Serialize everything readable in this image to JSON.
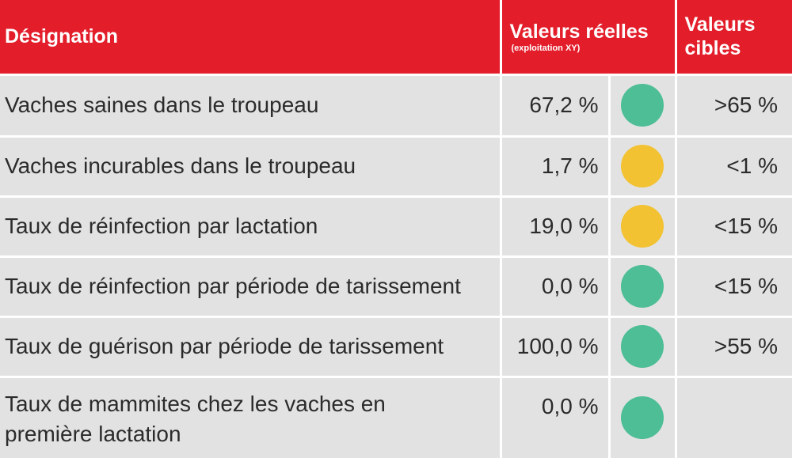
{
  "header": {
    "designation": "Désignation",
    "actual_values": "Valeurs réelles",
    "actual_values_sub": "(exploitation XY)",
    "target_values_line1": "Valeurs",
    "target_values_line2": "cibles"
  },
  "colors": {
    "green": "#4dbe95",
    "yellow": "#f2c232",
    "header_red": "#e31d2a"
  },
  "rows": [
    {
      "label": "Vaches saines dans le troupeau",
      "value": "67,2 %",
      "status": "green",
      "target": ">65 %"
    },
    {
      "label": "Vaches incurables dans le troupeau",
      "value": "1,7 %",
      "status": "yellow",
      "target": "<1 %"
    },
    {
      "label": "Taux de réinfection par lactation",
      "value": "19,0 %",
      "status": "yellow",
      "target": "<15 %"
    },
    {
      "label": "Taux de réinfection par période de tarissement",
      "value": "0,0 %",
      "status": "green",
      "target": "<15 %"
    },
    {
      "label": "Taux de guérison par période de tarissement",
      "value": "100,0 %",
      "status": "green",
      "target": ">55 %"
    },
    {
      "label_line1": "Taux de mammites chez les vaches en",
      "label_line2": "première lactation",
      "value": "0,0 %",
      "status": "green",
      "target": ""
    }
  ]
}
